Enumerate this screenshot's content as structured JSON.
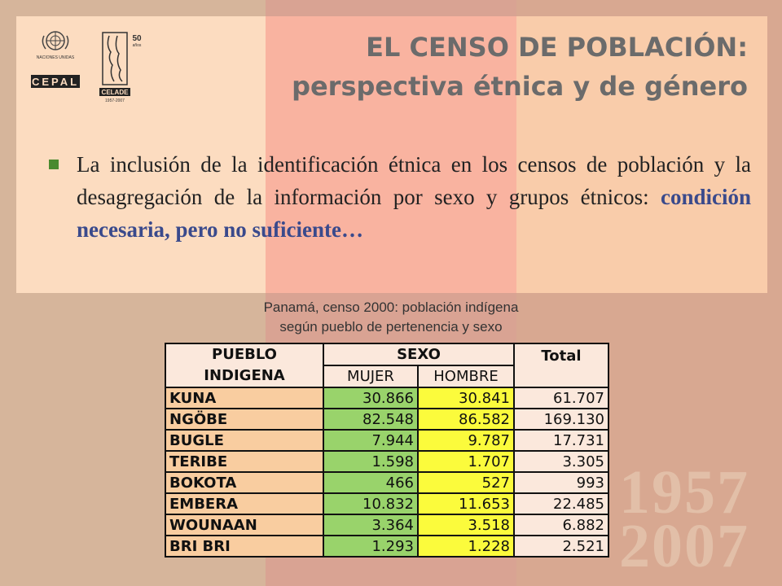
{
  "title": {
    "line1": "EL CENSO DE POBLACIÓN:",
    "line2": "perspectiva étnica y de género"
  },
  "logos": {
    "un_text": "NACIONES UNIDAS",
    "cepal": "CEPAL",
    "celade": "CELADE",
    "celade_years": "1957-2007",
    "fifty": "50",
    "fifty_sub": "años"
  },
  "watermark": {
    "year1": "1957",
    "year2": "2007"
  },
  "bullet": {
    "text": "La inclusión de la identificación étnica en los censos de población y la desagregación de la información por sexo y grupos étnicos:",
    "emphasis": "condición necesaria, pero no suficiente…"
  },
  "caption": {
    "line1": "Panamá, censo  2000: población   indígena",
    "line2": "según pueblo de pertenencia y sexo"
  },
  "table": {
    "h_pueblo1": "PUEBLO",
    "h_pueblo2": "INDIGENA",
    "h_sexo": "SEXO",
    "h_total": "Total",
    "h_mujer": "MUJER",
    "h_hombre": "HOMBRE",
    "rows": [
      {
        "name": "KUNA",
        "mujer": "30.866",
        "hombre": "30.841",
        "total": "61.707"
      },
      {
        "name": "NGÖBE",
        "mujer": "82.548",
        "hombre": "86.582",
        "total": "169.130"
      },
      {
        "name": "BUGLE",
        "mujer": "7.944",
        "hombre": "9.787",
        "total": "17.731"
      },
      {
        "name": "TERIBE",
        "mujer": "1.598",
        "hombre": "1.707",
        "total": "3.305"
      },
      {
        "name": "BOKOTA",
        "mujer": "466",
        "hombre": "527",
        "total": "993"
      },
      {
        "name": "EMBERA",
        "mujer": "10.832",
        "hombre": "11.653",
        "total": "22.485"
      },
      {
        "name": "WOUNAAN",
        "mujer": "3.364",
        "hombre": "3.518",
        "total": "6.882"
      },
      {
        "name": "BRI BRI",
        "mujer": "1.293",
        "hombre": "1.228",
        "total": "2.521"
      }
    ]
  }
}
